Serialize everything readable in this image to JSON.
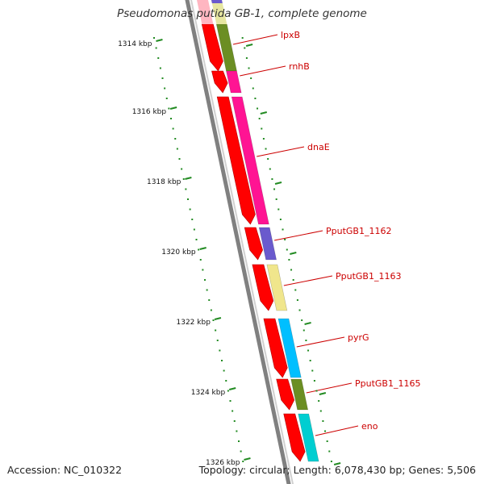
{
  "title": "Pseudomonas putida GB-1, complete genome",
  "footer": {
    "accession": "Accession: NC_010322",
    "summary": "Topology: circular; Length: 6,078,430 bp; Genes: 5,506"
  },
  "ticks": [
    "1314 kbp",
    "1316 kbp",
    "1318 kbp",
    "1320 kbp",
    "1322 kbp",
    "1324 kbp",
    "1326 kbp"
  ],
  "genes": [
    {
      "label": "lpxB",
      "color": "#6b8e23"
    },
    {
      "label": "rnhB",
      "color": "#ff1493"
    },
    {
      "label": "dnaE",
      "color": "#ff1493"
    },
    {
      "label": "PputGB1_1162",
      "color": "#6a5acd"
    },
    {
      "label": "PputGB1_1163",
      "color": "#f0e68c"
    },
    {
      "label": "pyrG",
      "color": "#00bfff"
    },
    {
      "label": "PputGB1_1165",
      "color": "#6b8e23"
    },
    {
      "label": "eno",
      "color": "#00ced1"
    }
  ],
  "colors": {
    "strand_arrow": "#ff0000",
    "label": "#cc0000",
    "tick": "#228b22",
    "backbone": "#808080"
  }
}
